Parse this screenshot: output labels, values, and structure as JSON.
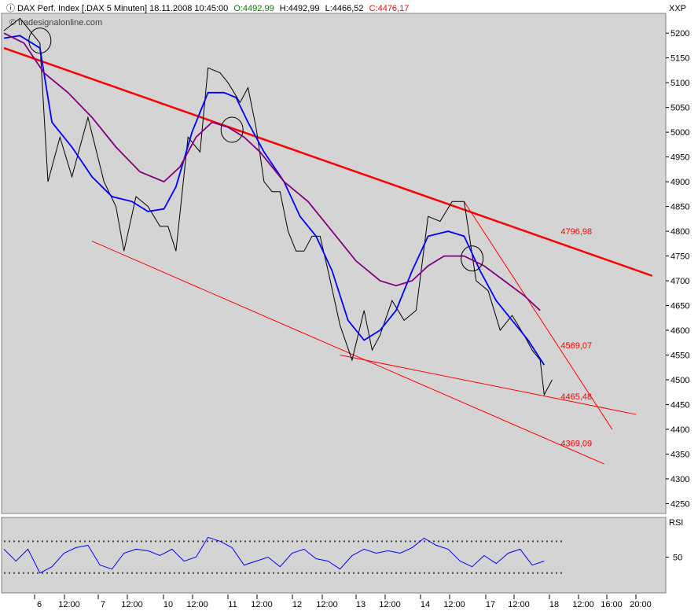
{
  "header": {
    "symbol": "DAX Perf. Index [.DAX  5 Minuten] 18.11.2008 10:45:00",
    "open": "O:4492,99",
    "high": "H:4492,99",
    "low": "L:4466,52",
    "close": "C:4476,17",
    "watermark": "© tradesignalonline.com",
    "exchange": "XXP"
  },
  "colors": {
    "background": "#d4d4d4",
    "price": "#000000",
    "fast_ma": "#0000ff",
    "slow_ma": "#800080",
    "trendline": "#ff0000",
    "open_color": "#008000",
    "close_color": "#ff0000"
  },
  "chart_data": [
    {
      "type": "line",
      "ylim": [
        4230,
        5240
      ],
      "y_ticks": [
        4250,
        4300,
        4350,
        4400,
        4450,
        4500,
        4550,
        4600,
        4650,
        4700,
        4750,
        4800,
        4850,
        4900,
        4950,
        5000,
        5050,
        5100,
        5150,
        5200
      ],
      "x_labels": [
        "6",
        "12:00",
        "7",
        "12:00",
        "10",
        "12:00",
        "11",
        "12:00",
        "12",
        "12:00",
        "13",
        "12:00",
        "14",
        "12:00",
        "17",
        "12:00",
        "18",
        "12:00",
        "16:00",
        "20:00"
      ],
      "series": [
        {
          "key": "price",
          "points": [
            [
              0,
              5205
            ],
            [
              4,
              5230
            ],
            [
              9,
              5180
            ],
            [
              11,
              4900
            ],
            [
              14,
              4990
            ],
            [
              17,
              4910
            ],
            [
              21,
              5030
            ],
            [
              25,
              4900
            ],
            [
              28,
              4850
            ],
            [
              30,
              4760
            ],
            [
              33,
              4870
            ],
            [
              36,
              4850
            ],
            [
              39,
              4810
            ],
            [
              41,
              4810
            ],
            [
              43,
              4760
            ],
            [
              46,
              4990
            ],
            [
              49,
              4960
            ],
            [
              51,
              5130
            ],
            [
              54,
              5120
            ],
            [
              56,
              5100
            ],
            [
              59,
              5060
            ],
            [
              61,
              5090
            ],
            [
              63,
              5010
            ],
            [
              65,
              4900
            ],
            [
              67,
              4880
            ],
            [
              69,
              4880
            ],
            [
              71,
              4800
            ],
            [
              73,
              4760
            ],
            [
              75,
              4760
            ],
            [
              77,
              4790
            ],
            [
              79,
              4790
            ],
            [
              81,
              4720
            ],
            [
              84,
              4610
            ],
            [
              87,
              4540
            ],
            [
              90,
              4640
            ],
            [
              92,
              4560
            ],
            [
              94,
              4590
            ],
            [
              97,
              4660
            ],
            [
              100,
              4620
            ],
            [
              103,
              4640
            ],
            [
              106,
              4830
            ],
            [
              109,
              4820
            ],
            [
              112,
              4860
            ],
            [
              115,
              4860
            ],
            [
              118,
              4700
            ],
            [
              121,
              4680
            ],
            [
              124,
              4600
            ],
            [
              127,
              4630
            ],
            [
              130,
              4590
            ],
            [
              132,
              4560
            ],
            [
              134,
              4540
            ],
            [
              135,
              4470
            ],
            [
              137,
              4500
            ]
          ]
        },
        {
          "key": "fast_ma",
          "points": [
            [
              0,
              5190
            ],
            [
              4,
              5195
            ],
            [
              9,
              5170
            ],
            [
              12,
              5020
            ],
            [
              17,
              4970
            ],
            [
              22,
              4910
            ],
            [
              27,
              4870
            ],
            [
              32,
              4860
            ],
            [
              36,
              4840
            ],
            [
              40,
              4845
            ],
            [
              43,
              4890
            ],
            [
              47,
              5000
            ],
            [
              51,
              5080
            ],
            [
              55,
              5080
            ],
            [
              58,
              5070
            ],
            [
              61,
              5020
            ],
            [
              65,
              4960
            ],
            [
              70,
              4900
            ],
            [
              74,
              4830
            ],
            [
              78,
              4790
            ],
            [
              82,
              4720
            ],
            [
              86,
              4620
            ],
            [
              90,
              4580
            ],
            [
              94,
              4600
            ],
            [
              98,
              4640
            ],
            [
              102,
              4720
            ],
            [
              106,
              4790
            ],
            [
              111,
              4800
            ],
            [
              115,
              4790
            ],
            [
              119,
              4720
            ],
            [
              123,
              4660
            ],
            [
              127,
              4620
            ],
            [
              131,
              4580
            ],
            [
              135,
              4530
            ]
          ]
        },
        {
          "key": "slow_ma",
          "points": [
            [
              0,
              5200
            ],
            [
              5,
              5180
            ],
            [
              10,
              5120
            ],
            [
              16,
              5080
            ],
            [
              22,
              5030
            ],
            [
              28,
              4970
            ],
            [
              34,
              4920
            ],
            [
              40,
              4900
            ],
            [
              44,
              4930
            ],
            [
              48,
              4990
            ],
            [
              52,
              5020
            ],
            [
              56,
              5010
            ],
            [
              60,
              4990
            ],
            [
              64,
              4960
            ],
            [
              70,
              4900
            ],
            [
              76,
              4860
            ],
            [
              82,
              4800
            ],
            [
              88,
              4740
            ],
            [
              94,
              4700
            ],
            [
              98,
              4690
            ],
            [
              102,
              4700
            ],
            [
              106,
              4730
            ],
            [
              110,
              4750
            ],
            [
              115,
              4750
            ],
            [
              120,
              4730
            ],
            [
              125,
              4700
            ],
            [
              130,
              4670
            ],
            [
              134,
              4640
            ]
          ]
        }
      ],
      "trendlines": [
        {
          "from": [
            0,
            5170
          ],
          "to": [
            162,
            4710
          ]
        },
        {
          "from": [
            22,
            4780
          ],
          "to": [
            150,
            4330
          ]
        },
        {
          "from": [
            84,
            4550
          ],
          "to": [
            158,
            4430
          ]
        },
        {
          "from": [
            115,
            4860
          ],
          "to": [
            152,
            4400
          ]
        }
      ],
      "annotations": [
        {
          "text": "4796,98",
          "x": 136,
          "y": 4800
        },
        {
          "text": "4569,07",
          "x": 136,
          "y": 4570
        },
        {
          "text": "4465,48",
          "x": 136,
          "y": 4467
        },
        {
          "text": "4369,09",
          "x": 136,
          "y": 4372
        }
      ],
      "ellipses": [
        [
          9,
          5185
        ],
        [
          57,
          5005
        ],
        [
          117,
          4745
        ]
      ]
    },
    {
      "type": "line",
      "ylabel": "RSI",
      "ylim": [
        5,
        100
      ],
      "y_ticks": [
        50
      ],
      "reference_lines": [
        70,
        30
      ],
      "series": [
        {
          "key": "rsi",
          "points": [
            [
              0,
              60
            ],
            [
              3,
              45
            ],
            [
              6,
              60
            ],
            [
              9,
              30
            ],
            [
              12,
              38
            ],
            [
              15,
              55
            ],
            [
              18,
              62
            ],
            [
              21,
              65
            ],
            [
              24,
              40
            ],
            [
              27,
              35
            ],
            [
              30,
              55
            ],
            [
              33,
              60
            ],
            [
              36,
              58
            ],
            [
              39,
              52
            ],
            [
              42,
              60
            ],
            [
              45,
              45
            ],
            [
              48,
              50
            ],
            [
              51,
              75
            ],
            [
              54,
              70
            ],
            [
              57,
              62
            ],
            [
              60,
              40
            ],
            [
              63,
              45
            ],
            [
              66,
              50
            ],
            [
              69,
              38
            ],
            [
              72,
              55
            ],
            [
              75,
              60
            ],
            [
              78,
              48
            ],
            [
              81,
              45
            ],
            [
              84,
              35
            ],
            [
              87,
              52
            ],
            [
              90,
              60
            ],
            [
              93,
              55
            ],
            [
              96,
              58
            ],
            [
              99,
              55
            ],
            [
              102,
              62
            ],
            [
              105,
              74
            ],
            [
              108,
              65
            ],
            [
              111,
              60
            ],
            [
              114,
              45
            ],
            [
              117,
              38
            ],
            [
              120,
              52
            ],
            [
              123,
              42
            ],
            [
              126,
              55
            ],
            [
              129,
              60
            ],
            [
              132,
              40
            ],
            [
              135,
              45
            ]
          ]
        }
      ]
    }
  ]
}
